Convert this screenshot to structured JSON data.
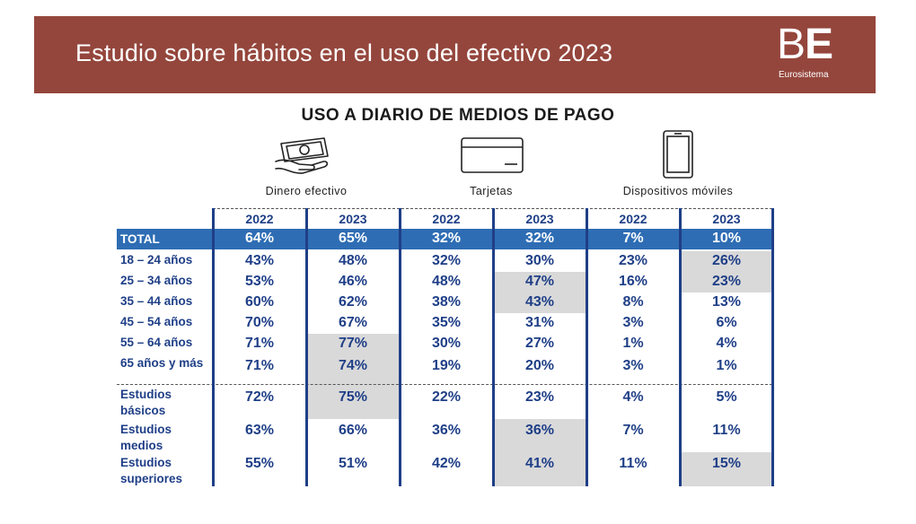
{
  "banner": {
    "title": "Estudio sobre hábitos en el uso del efectivo 2023",
    "logo_letters_thin": "B",
    "logo_letters_bold": "E",
    "logo_sub": "Eurosistema",
    "color": "#94463c"
  },
  "heading": "USO A DIARIO DE MEDIOS DE PAGO",
  "categories": [
    {
      "label": "Dinero efectivo",
      "icon": "cash-hand-icon"
    },
    {
      "label": "Tarjetas",
      "icon": "credit-card-icon"
    },
    {
      "label": "Dispositivos móviles",
      "icon": "mobile-phone-icon"
    }
  ],
  "years": [
    "2022",
    "2023",
    "2022",
    "2023",
    "2022",
    "2023"
  ],
  "rows": [
    {
      "label": "TOTAL",
      "values": [
        "64%",
        "65%",
        "32%",
        "32%",
        "7%",
        "10%"
      ],
      "highlight": [
        false,
        false,
        false,
        false,
        false,
        false
      ]
    },
    {
      "label": "18 – 24 años",
      "values": [
        "43%",
        "48%",
        "32%",
        "30%",
        "23%",
        "26%"
      ],
      "highlight": [
        false,
        false,
        false,
        false,
        false,
        true
      ]
    },
    {
      "label": "25 – 34 años",
      "values": [
        "53%",
        "46%",
        "48%",
        "47%",
        "16%",
        "23%"
      ],
      "highlight": [
        false,
        false,
        false,
        true,
        false,
        true
      ]
    },
    {
      "label": "35 – 44 años",
      "values": [
        "60%",
        "62%",
        "38%",
        "43%",
        "8%",
        "13%"
      ],
      "highlight": [
        false,
        false,
        false,
        true,
        false,
        false
      ]
    },
    {
      "label": "45 – 54 años",
      "values": [
        "70%",
        "67%",
        "35%",
        "31%",
        "3%",
        "6%"
      ],
      "highlight": [
        false,
        false,
        false,
        false,
        false,
        false
      ]
    },
    {
      "label": "55 – 64 años",
      "values": [
        "71%",
        "77%",
        "30%",
        "27%",
        "1%",
        "4%"
      ],
      "highlight": [
        false,
        true,
        false,
        false,
        false,
        false
      ]
    },
    {
      "label": "65 años y más",
      "values": [
        "71%",
        "74%",
        "19%",
        "20%",
        "3%",
        "1%"
      ],
      "highlight": [
        false,
        true,
        false,
        false,
        false,
        false
      ]
    },
    {
      "label": "Estudios básicos",
      "values": [
        "72%",
        "75%",
        "22%",
        "23%",
        "4%",
        "5%"
      ],
      "highlight": [
        false,
        true,
        false,
        false,
        false,
        false
      ]
    },
    {
      "label": "Estudios medios",
      "values": [
        "63%",
        "66%",
        "36%",
        "36%",
        "7%",
        "11%"
      ],
      "highlight": [
        false,
        false,
        false,
        true,
        false,
        false
      ]
    },
    {
      "label": "Estudios superiores",
      "values": [
        "55%",
        "51%",
        "42%",
        "41%",
        "11%",
        "15%"
      ],
      "highlight": [
        false,
        false,
        false,
        true,
        false,
        true
      ]
    }
  ],
  "colors": {
    "text_blue": "#1f3f87",
    "total_bar": "#2e6db4",
    "shade": "#d9d9d9"
  }
}
